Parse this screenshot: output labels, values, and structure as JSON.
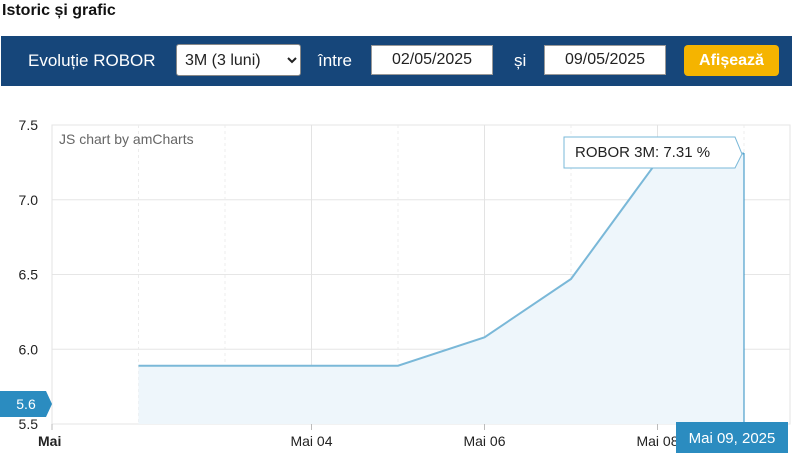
{
  "section_title": "Istoric și grafic",
  "toolbar": {
    "label": "Evoluție ROBOR",
    "selected_period": "3M (3 luni)",
    "between_label": "între",
    "date_from": "02/05/2025",
    "and_label": "și",
    "date_to": "09/05/2025",
    "show_button": "Afișează"
  },
  "chart_data": {
    "type": "area",
    "credit": "JS chart by amCharts",
    "x": [
      "2025-05-02",
      "2025-05-03",
      "2025-05-04",
      "2025-05-05",
      "2025-05-06",
      "2025-05-07",
      "2025-05-08",
      "2025-05-09"
    ],
    "series": [
      {
        "values": [
          5.89,
          5.89,
          5.89,
          5.89,
          6.08,
          6.47,
          7.26,
          7.31
        ]
      }
    ],
    "ylim": [
      5.5,
      7.5
    ],
    "yticks": [
      "7.5",
      "7.0",
      "6.5",
      "6.0",
      "5.5"
    ],
    "xticks": [
      {
        "label": "Mai",
        "date": "2025-05-01",
        "bold": true
      },
      {
        "label": "Mai 04",
        "date": "2025-05-04"
      },
      {
        "label": "Mai 06",
        "date": "2025-05-06"
      },
      {
        "label": "Mai 08",
        "date": "2025-05-08"
      }
    ],
    "xlim": [
      "2025-05-01",
      "2025-05-09"
    ],
    "tooltip": "ROBOR 3M: 7.31 %",
    "cursor_x_label": "Mai 09, 2025",
    "cursor_y_label": "5.6",
    "grid": true,
    "line_color": "#7ab8d8",
    "fill_color": "#eef6fb",
    "cursor_label_bg": "#2b8cc0"
  }
}
